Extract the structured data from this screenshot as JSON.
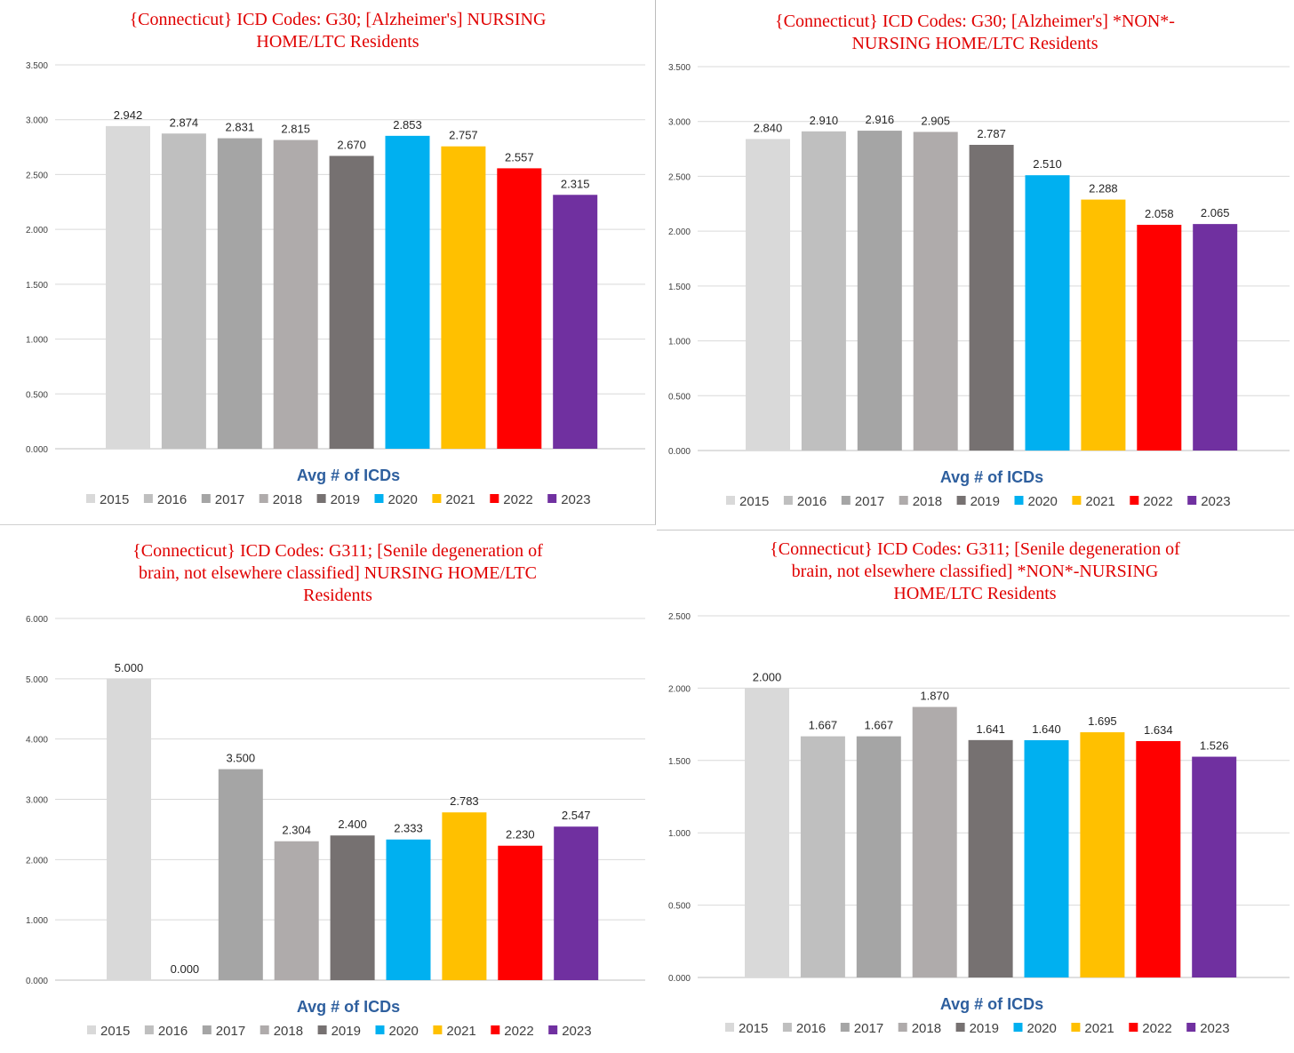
{
  "legend_colors": {
    "2015": "#d9d9d9",
    "2016": "#bfbfbf",
    "2017": "#a5a5a5",
    "2018": "#afabab",
    "2019": "#767171",
    "2020": "#00b0f0",
    "2021": "#ffc000",
    "2022": "#ff0000",
    "2023": "#7030a0"
  },
  "chart_data": [
    {
      "type": "bar",
      "title_lines": [
        "{Connecticut}  ICD Codes: G30;  [Alzheimer's] NURSING",
        "HOME/LTC Residents"
      ],
      "xlabel": "Avg # of ICDs",
      "ylabel": "",
      "ylim": [
        0,
        3.5
      ],
      "yticks": [
        "0.000",
        "0.500",
        "1.000",
        "1.500",
        "2.000",
        "2.500",
        "3.000",
        "3.500"
      ],
      "grid": true,
      "legend_position": "bottom",
      "categories": [
        "2015",
        "2016",
        "2017",
        "2018",
        "2019",
        "2020",
        "2021",
        "2022",
        "2023"
      ],
      "values": [
        2.942,
        2.874,
        2.831,
        2.815,
        2.67,
        2.853,
        2.757,
        2.557,
        2.315
      ],
      "value_labels": [
        "2.942",
        "2.874",
        "2.831",
        "2.815",
        "2.670",
        "2.853",
        "2.757",
        "2.557",
        "2.315"
      ]
    },
    {
      "type": "bar",
      "title_lines": [
        "{Connecticut}  ICD Codes: G30;  [Alzheimer's] *NON*-",
        "NURSING HOME/LTC Residents"
      ],
      "xlabel": "Avg # of ICDs",
      "ylabel": "",
      "ylim": [
        0,
        3.5
      ],
      "yticks": [
        "0.000",
        "0.500",
        "1.000",
        "1.500",
        "2.000",
        "2.500",
        "3.000",
        "3.500"
      ],
      "grid": true,
      "legend_position": "bottom",
      "categories": [
        "2015",
        "2016",
        "2017",
        "2018",
        "2019",
        "2020",
        "2021",
        "2022",
        "2023"
      ],
      "values": [
        2.84,
        2.91,
        2.916,
        2.905,
        2.787,
        2.51,
        2.288,
        2.058,
        2.065
      ],
      "value_labels": [
        "2.840",
        "2.910",
        "2.916",
        "2.905",
        "2.787",
        "2.510",
        "2.288",
        "2.058",
        "2.065"
      ]
    },
    {
      "type": "bar",
      "title_lines": [
        "{Connecticut}  ICD Codes: G311;  [Senile degeneration of",
        "brain, not elsewhere classified] NURSING HOME/LTC",
        "Residents"
      ],
      "xlabel": "Avg # of ICDs",
      "ylabel": "",
      "ylim": [
        0,
        6
      ],
      "yticks": [
        "0.000",
        "1.000",
        "2.000",
        "3.000",
        "4.000",
        "5.000",
        "6.000"
      ],
      "grid": true,
      "legend_position": "bottom",
      "categories": [
        "2015",
        "2016",
        "2017",
        "2018",
        "2019",
        "2020",
        "2021",
        "2022",
        "2023"
      ],
      "values": [
        5.0,
        0.0,
        3.5,
        2.304,
        2.4,
        2.333,
        2.783,
        2.23,
        2.547
      ],
      "value_labels": [
        "5.000",
        "0.000",
        "3.500",
        "2.304",
        "2.400",
        "2.333",
        "2.783",
        "2.230",
        "2.547"
      ]
    },
    {
      "type": "bar",
      "title_lines": [
        "{Connecticut}  ICD Codes: G311;  [Senile degeneration of",
        "brain, not elsewhere classified] *NON*-NURSING",
        "HOME/LTC Residents"
      ],
      "xlabel": "Avg # of ICDs",
      "ylabel": "",
      "ylim": [
        0,
        2.5
      ],
      "yticks": [
        "0.000",
        "0.500",
        "1.000",
        "1.500",
        "2.000",
        "2.500"
      ],
      "grid": true,
      "legend_position": "bottom",
      "categories": [
        "2015",
        "2016",
        "2017",
        "2018",
        "2019",
        "2020",
        "2021",
        "2022",
        "2023"
      ],
      "values": [
        2.0,
        1.667,
        1.667,
        1.87,
        1.641,
        1.64,
        1.695,
        1.634,
        1.526
      ],
      "value_labels": [
        "2.000",
        "1.667",
        "1.667",
        "1.870",
        "1.641",
        "1.640",
        "1.695",
        "1.634",
        "1.526"
      ]
    }
  ]
}
